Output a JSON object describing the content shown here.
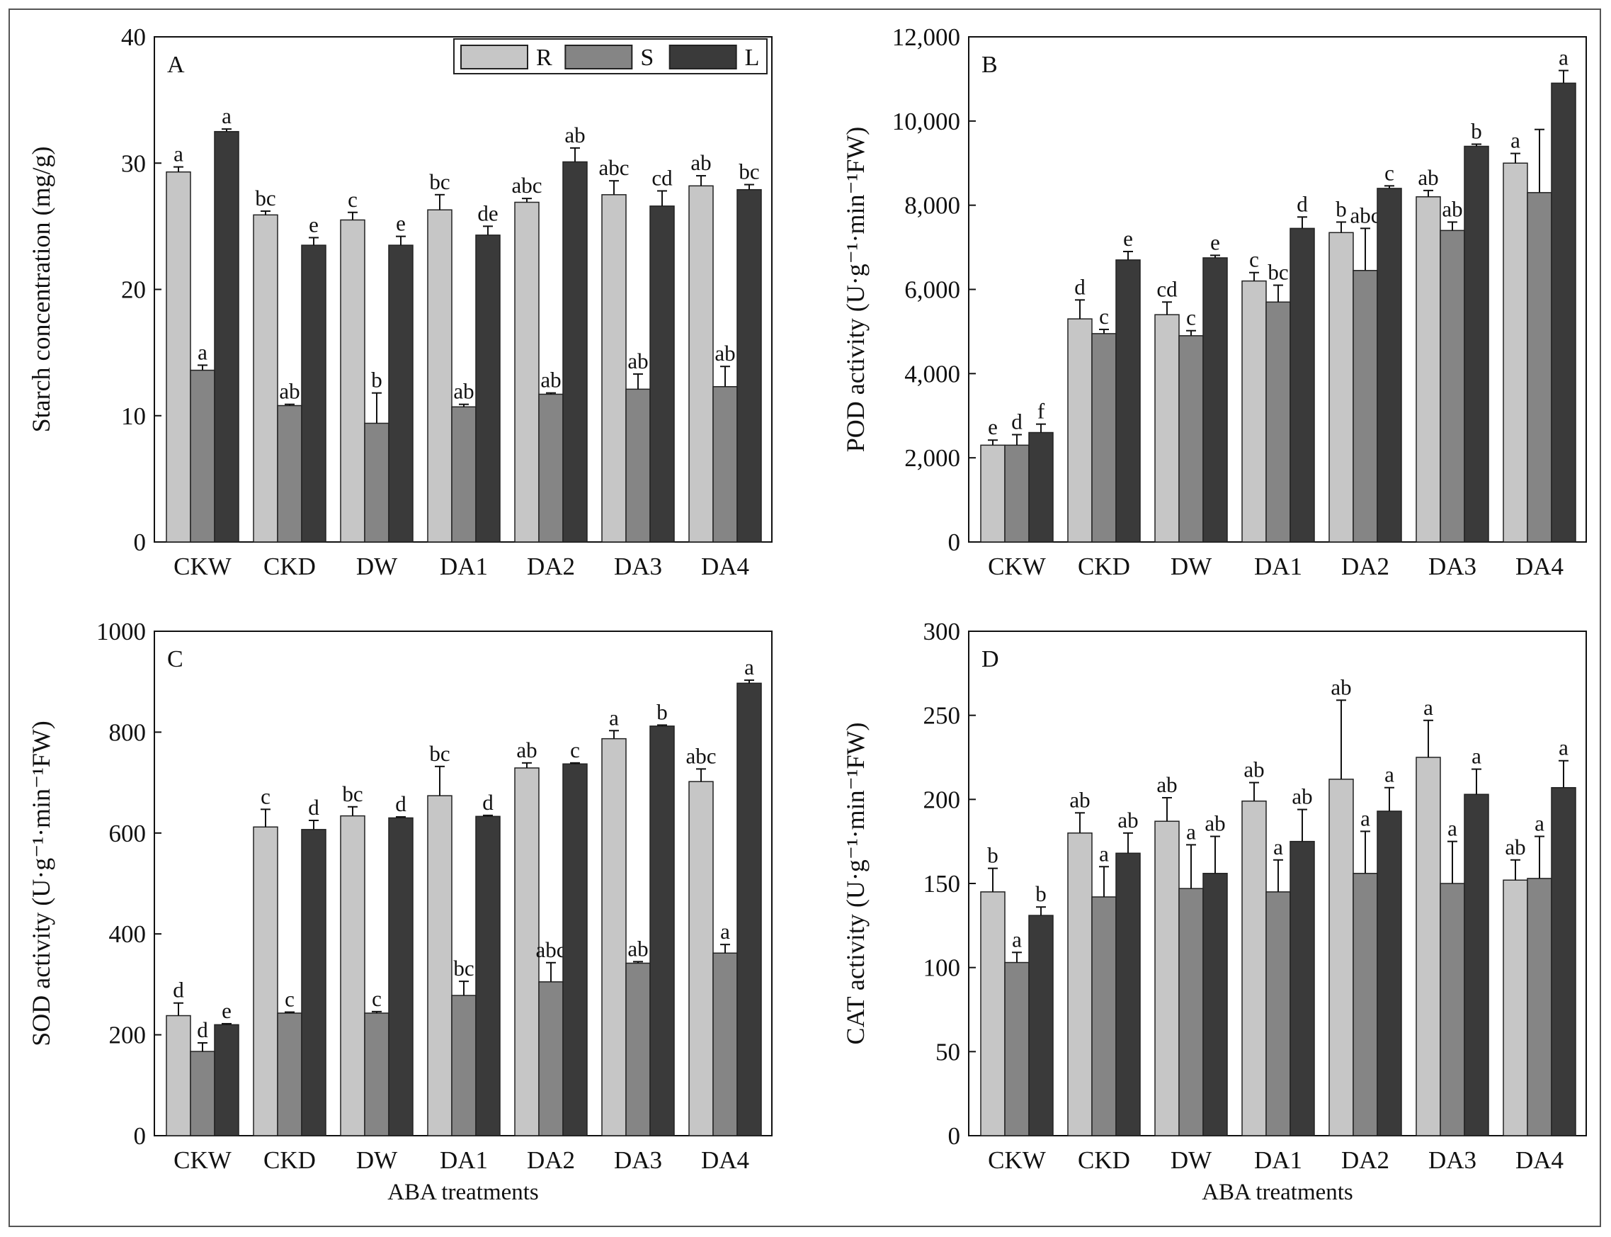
{
  "colors": {
    "R": "#c6c6c6",
    "S": "#858585",
    "L": "#3a3a3a",
    "axis": "#111111"
  },
  "legend": [
    {
      "key": "R",
      "label": "R"
    },
    {
      "key": "S",
      "label": "S"
    },
    {
      "key": "L",
      "label": "L"
    }
  ],
  "chart_data": [
    {
      "type": "bar",
      "panel": "A",
      "ylabel": "Starch concentration (mg/g)",
      "xlabel": "",
      "ylim": [
        0,
        40
      ],
      "yticks": [
        0,
        10,
        20,
        30,
        40
      ],
      "ytick_labels": [
        "0",
        "10",
        "20",
        "30",
        "40"
      ],
      "categories": [
        "CKW",
        "CKD",
        "DW",
        "DA1",
        "DA2",
        "DA3",
        "DA4"
      ],
      "series": [
        {
          "name": "R",
          "values": [
            29.3,
            25.9,
            25.5,
            26.3,
            26.9,
            27.5,
            28.2
          ],
          "errors": [
            0.4,
            0.3,
            0.6,
            1.2,
            0.3,
            1.1,
            0.8
          ],
          "labels": [
            "a",
            "bc",
            "c",
            "bc",
            "abc",
            "abc",
            "ab"
          ]
        },
        {
          "name": "S",
          "values": [
            13.6,
            10.8,
            9.4,
            10.7,
            11.7,
            12.1,
            12.3
          ],
          "errors": [
            0.4,
            0.1,
            2.4,
            0.2,
            0.1,
            1.2,
            1.6
          ],
          "labels": [
            "a",
            "ab",
            "b",
            "ab",
            "ab",
            "ab",
            "ab"
          ]
        },
        {
          "name": "L",
          "values": [
            32.5,
            23.5,
            23.5,
            24.3,
            30.1,
            26.6,
            27.9
          ],
          "errors": [
            0.2,
            0.6,
            0.7,
            0.7,
            1.1,
            1.2,
            0.4
          ],
          "labels": [
            "a",
            "e",
            "e",
            "de",
            "ab",
            "cd",
            "bc"
          ]
        }
      ]
    },
    {
      "type": "bar",
      "panel": "B",
      "ylabel": "POD activity (U·g⁻¹·min⁻¹FW)",
      "xlabel": "",
      "ylim": [
        0,
        12000
      ],
      "yticks": [
        0,
        2000,
        4000,
        6000,
        8000,
        10000,
        12000
      ],
      "ytick_labels": [
        "0",
        "2,000",
        "4,000",
        "6,000",
        "8,000",
        "10,000",
        "12,000"
      ],
      "categories": [
        "CKW",
        "CKD",
        "DW",
        "DA1",
        "DA2",
        "DA3",
        "DA4"
      ],
      "series": [
        {
          "name": "R",
          "values": [
            2300,
            5300,
            5400,
            6200,
            7350,
            8200,
            9000
          ],
          "errors": [
            120,
            450,
            300,
            200,
            250,
            150,
            230
          ],
          "labels": [
            "e",
            "d",
            "cd",
            "c",
            "b",
            "ab",
            "a"
          ]
        },
        {
          "name": "S",
          "values": [
            2300,
            4950,
            4900,
            5700,
            6450,
            7400,
            8300
          ],
          "errors": [
            250,
            100,
            120,
            400,
            1000,
            200,
            1500
          ],
          "labels": [
            "d",
            "c",
            "c",
            "bc",
            "abc",
            "ab",
            ""
          ]
        },
        {
          "name": "L",
          "values": [
            2600,
            6700,
            6750,
            7450,
            8400,
            9400,
            10900
          ],
          "errors": [
            200,
            200,
            60,
            270,
            60,
            50,
            300
          ],
          "labels": [
            "f",
            "e",
            "e",
            "d",
            "c",
            "b",
            "a"
          ]
        }
      ]
    },
    {
      "type": "bar",
      "panel": "C",
      "ylabel": "SOD activity (U·g⁻¹·min⁻¹FW)",
      "xlabel": "ABA treatments",
      "ylim": [
        0,
        1000
      ],
      "yticks": [
        0,
        200,
        400,
        600,
        800,
        1000
      ],
      "ytick_labels": [
        "0",
        "200",
        "400",
        "600",
        "800",
        "1000"
      ],
      "categories": [
        "CKW",
        "CKD",
        "DW",
        "DA1",
        "DA2",
        "DA3",
        "DA4"
      ],
      "series": [
        {
          "name": "R",
          "values": [
            238,
            612,
            634,
            674,
            729,
            787,
            702
          ],
          "errors": [
            25,
            35,
            18,
            58,
            10,
            16,
            25
          ],
          "labels": [
            "d",
            "c",
            "bc",
            "bc",
            "ab",
            "a",
            "abc"
          ]
        },
        {
          "name": "S",
          "values": [
            167,
            243,
            243,
            278,
            305,
            342,
            362
          ],
          "errors": [
            17,
            2,
            3,
            28,
            38,
            3,
            17
          ],
          "labels": [
            "d",
            "c",
            "c",
            "bc",
            "abc",
            "ab",
            "a"
          ]
        },
        {
          "name": "L",
          "values": [
            220,
            607,
            630,
            633,
            737,
            812,
            897
          ],
          "errors": [
            2,
            18,
            2,
            2,
            2,
            2,
            6
          ],
          "labels": [
            "e",
            "d",
            "d",
            "d",
            "c",
            "b",
            "a"
          ]
        }
      ]
    },
    {
      "type": "bar",
      "panel": "D",
      "ylabel": "CAT activity (U·g⁻¹·min⁻¹FW)",
      "xlabel": "ABA treatments",
      "ylim": [
        0,
        300
      ],
      "yticks": [
        0,
        50,
        100,
        150,
        200,
        250,
        300
      ],
      "ytick_labels": [
        "0",
        "50",
        "100",
        "150",
        "200",
        "250",
        "300"
      ],
      "categories": [
        "CKW",
        "CKD",
        "DW",
        "DA1",
        "DA2",
        "DA3",
        "DA4"
      ],
      "series": [
        {
          "name": "R",
          "values": [
            145,
            180,
            187,
            199,
            212,
            225,
            152
          ],
          "errors": [
            14,
            12,
            14,
            11,
            47,
            22,
            12
          ],
          "labels": [
            "b",
            "ab",
            "ab",
            "ab",
            "ab",
            "a",
            "ab"
          ]
        },
        {
          "name": "S",
          "values": [
            103,
            142,
            147,
            145,
            156,
            150,
            153
          ],
          "errors": [
            6,
            18,
            26,
            19,
            25,
            25,
            25
          ],
          "labels": [
            "a",
            "a",
            "a",
            "a",
            "a",
            "a",
            "a"
          ]
        },
        {
          "name": "L",
          "values": [
            131,
            168,
            156,
            175,
            193,
            203,
            207
          ],
          "errors": [
            5,
            12,
            22,
            19,
            14,
            15,
            16
          ],
          "labels": [
            "b",
            "ab",
            "ab",
            "ab",
            "a",
            "a",
            "a"
          ]
        }
      ]
    }
  ]
}
